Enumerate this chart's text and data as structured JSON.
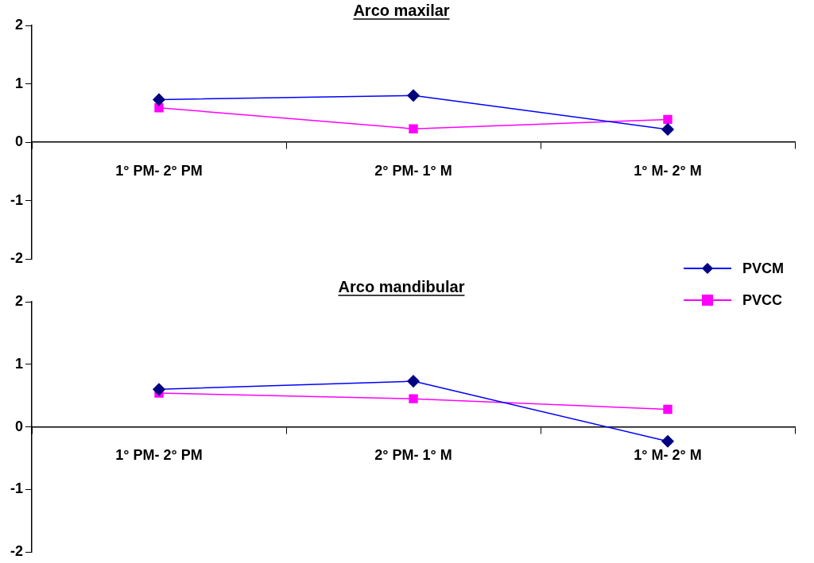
{
  "chart_data": [
    {
      "type": "line",
      "title": "Arco maxilar",
      "categories": [
        "1° PM- 2° PM",
        "2° PM- 1° M",
        "1° M- 2° M"
      ],
      "ylim": [
        -2,
        2
      ],
      "yticks": [
        -2,
        -1,
        0,
        1,
        2
      ],
      "grid": false,
      "legend": "bottom right",
      "series": [
        {
          "name": "PVCM",
          "color": "#0000ff",
          "marker": "diamond",
          "values": [
            0.73,
            0.8,
            0.22
          ]
        },
        {
          "name": "PVCC",
          "color": "#ff00ff",
          "marker": "square",
          "values": [
            0.59,
            0.23,
            0.39
          ]
        }
      ]
    },
    {
      "type": "line",
      "title": "Arco mandibular",
      "categories": [
        "1° PM- 2° PM",
        "2° PM- 1° M",
        "1° M- 2° M"
      ],
      "ylim": [
        -2,
        2
      ],
      "yticks": [
        -2,
        -1,
        0,
        1,
        2
      ],
      "grid": false,
      "legend": "top right",
      "series": [
        {
          "name": "PVCM",
          "color": "#0000ff",
          "marker": "diamond",
          "values": [
            0.6,
            0.73,
            -0.23
          ]
        },
        {
          "name": "PVCC",
          "color": "#ff00ff",
          "marker": "square",
          "values": [
            0.54,
            0.45,
            0.28
          ]
        }
      ]
    }
  ]
}
